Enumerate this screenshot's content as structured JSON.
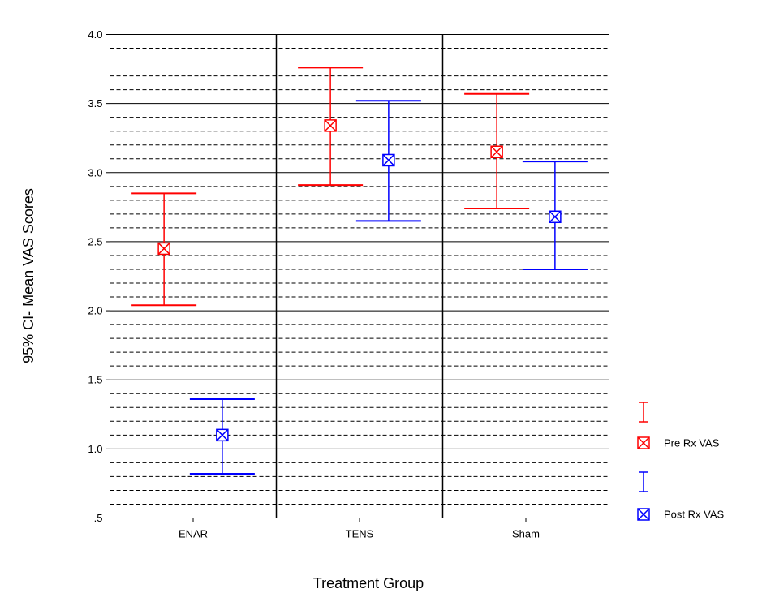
{
  "chart_data": {
    "type": "errorbar",
    "xlabel": "Treatment Group",
    "ylabel": "95% CI- Mean VAS Scores",
    "categories": [
      "ENAR",
      "TENS",
      "Sham"
    ],
    "ylim": [
      0.5,
      4.0
    ],
    "yticks": [
      0.5,
      1.0,
      1.5,
      2.0,
      2.5,
      3.0,
      3.5,
      4.0
    ],
    "ytick_labels": [
      ".5",
      "1.0",
      "1.5",
      "2.0",
      "2.5",
      "3.0",
      "3.5",
      "4.0"
    ],
    "grid": {
      "major": true,
      "minor": "dashed",
      "vertical": true
    },
    "legend_position": "right",
    "series": [
      {
        "name": "Pre Rx VAS",
        "color": "#ff0000",
        "mean": [
          2.45,
          3.34,
          3.15
        ],
        "lower": [
          2.04,
          2.91,
          2.74
        ],
        "upper": [
          2.85,
          3.76,
          3.57
        ]
      },
      {
        "name": "Post Rx VAS",
        "color": "#0000ff",
        "mean": [
          1.1,
          3.09,
          2.68
        ],
        "lower": [
          0.82,
          2.65,
          2.3
        ],
        "upper": [
          1.36,
          3.52,
          3.08
        ]
      }
    ]
  }
}
